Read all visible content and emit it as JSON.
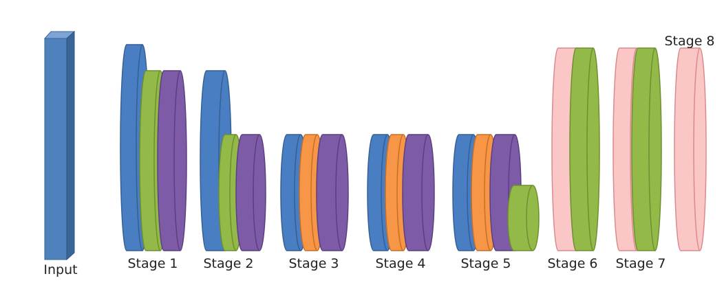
{
  "labels": {
    "input": "Input",
    "stage1": "Stage 1",
    "stage2": "Stage 2",
    "stage3": "Stage 3",
    "stage4": "Stage 4",
    "stage5": "Stage 5",
    "stage6": "Stage 6",
    "stage7": "Stage 7",
    "stage8": "Stage 8"
  },
  "colors": {
    "blue": "#4a7ec2",
    "green": "#93ba48",
    "purple": "#7d5ba6",
    "orange": "#f79646",
    "pink": "#fbc6c6",
    "input": "#4f81bd"
  }
}
